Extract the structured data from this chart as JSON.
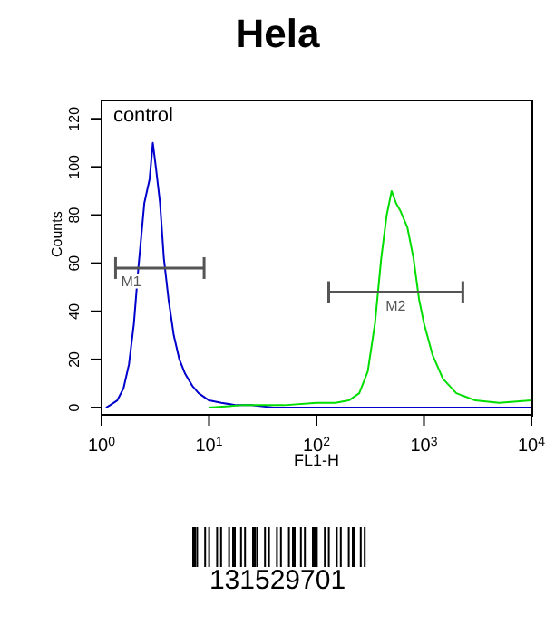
{
  "chart_data": {
    "type": "line",
    "title": "Hela",
    "xlabel": "FL1-H",
    "ylabel": "Counts",
    "log": "x",
    "xlim": [
      1,
      10000
    ],
    "xticks": [
      {
        "value": 1,
        "label": "10$^{0}$"
      },
      {
        "value": 10,
        "label": "10$^{1}$"
      },
      {
        "value": 100,
        "label": "10$^{2}$"
      },
      {
        "value": 1000,
        "label": "10$^{3}$"
      },
      {
        "value": 10000,
        "label": "10$^{4}$"
      }
    ],
    "ylim": [
      -3,
      128
    ],
    "yticks": [
      0,
      20,
      40,
      60,
      80,
      100,
      120
    ],
    "marker": "none",
    "line_style": "solid",
    "series": [
      {
        "name": "control",
        "color": "#0000cc",
        "x": [
          1.1,
          1.2,
          1.4,
          1.6,
          1.8,
          2.0,
          2.2,
          2.5,
          2.8,
          3.0,
          3.2,
          3.5,
          3.8,
          4.2,
          4.7,
          5.3,
          6,
          7,
          8,
          10,
          13,
          18,
          25,
          40,
          100,
          1000,
          10000
        ],
        "values": [
          0,
          1,
          3,
          8,
          18,
          35,
          58,
          85,
          95,
          110,
          100,
          85,
          62,
          45,
          30,
          20,
          14,
          9,
          6,
          3,
          2,
          1,
          1,
          0,
          0,
          0,
          0
        ]
      },
      {
        "color": "#00dd00",
        "x": [
          10,
          20,
          50,
          100,
          150,
          200,
          250,
          300,
          350,
          400,
          450,
          500,
          550,
          600,
          700,
          800,
          900,
          1000,
          1200,
          1500,
          2000,
          3000,
          5000,
          10000
        ],
        "values": [
          0,
          1,
          1,
          2,
          2,
          3,
          6,
          15,
          35,
          62,
          80,
          90,
          85,
          82,
          75,
          62,
          45,
          35,
          22,
          12,
          6,
          3,
          2,
          3
        ]
      },
      {
        "name": "M1",
        "color": "#555555",
        "x": [
          1.35,
          9
        ],
        "values": [
          58,
          58
        ]
      },
      {
        "name": "M2",
        "color": "#555555",
        "x": [
          130,
          2300
        ],
        "values": [
          48,
          48
        ]
      }
    ],
    "annotations": [
      "131529701"
    ]
  }
}
